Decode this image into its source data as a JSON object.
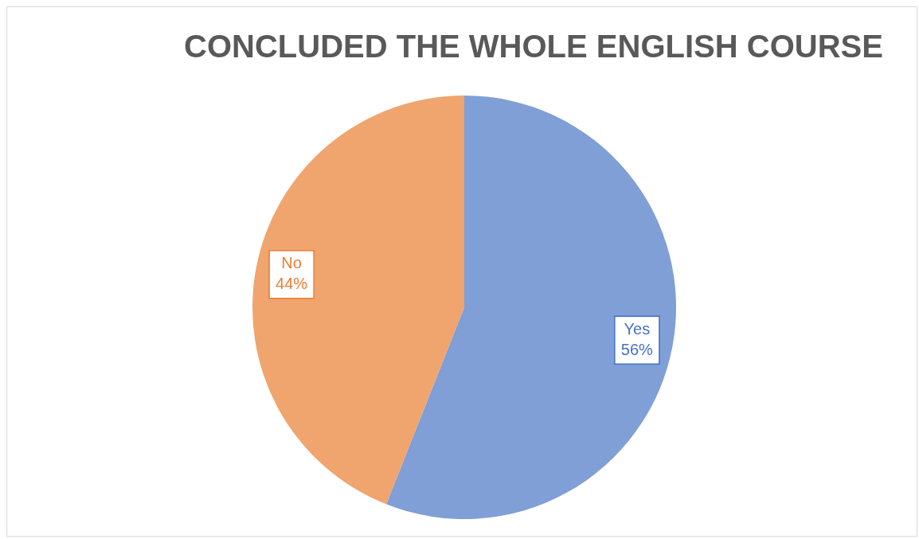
{
  "chart_data": {
    "type": "pie",
    "title": "CONCLUDED THE WHOLE ENGLISH COURSE",
    "categories": [
      "Yes",
      "No"
    ],
    "values": [
      56,
      44
    ],
    "colors": [
      "#7f9fd6",
      "#f0a46e"
    ],
    "value_labels": [
      "56%",
      "44%"
    ],
    "legend": false
  }
}
